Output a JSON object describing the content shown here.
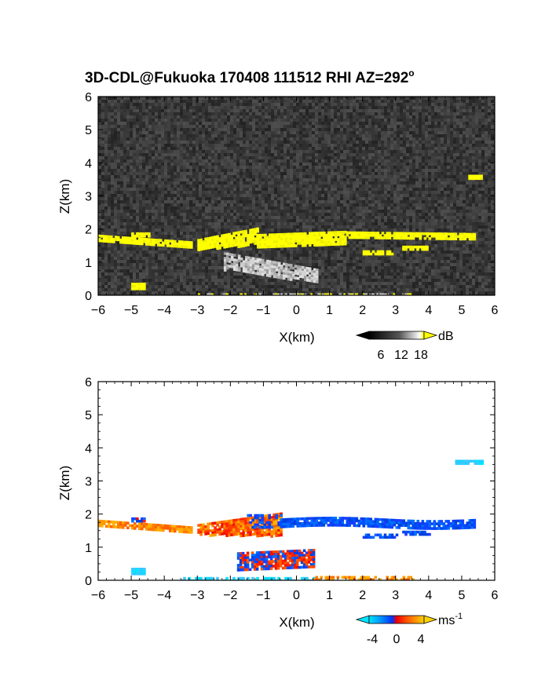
{
  "chart_data": [
    {
      "type": "heatmap",
      "title": "3D-CDL@Fukuoka 170408 111512 RHI AZ=292",
      "title_superscript": "o",
      "xlabel": "X(km)",
      "ylabel": "Z(km)",
      "xlim": [
        -6,
        6
      ],
      "ylim": [
        0,
        6
      ],
      "xticks": [
        "-6",
        "-5",
        "-4",
        "-3",
        "-2",
        "-1",
        "0",
        "1",
        "2",
        "3",
        "4",
        "5",
        "6"
      ],
      "yticks": [
        "0",
        "1",
        "2",
        "3",
        "4",
        "5",
        "6"
      ],
      "quantity": "backscatter",
      "colorbar": {
        "unit": "dB",
        "ticks": [
          "6",
          "12",
          "18"
        ],
        "range": [
          0,
          20
        ],
        "colormap": "gray-to-yellow"
      },
      "background": "noise (dark gray)",
      "features": [
        {
          "name": "cloud-layer",
          "x": [
            -6.0,
            5.5
          ],
          "z": [
            1.4,
            2.1
          ],
          "value": ">18 dB (yellow)"
        },
        {
          "name": "elevated-echo",
          "x": [
            5.2,
            5.6
          ],
          "z": [
            3.5,
            3.65
          ],
          "value": ">18 dB (yellow)"
        },
        {
          "name": "lower-plume",
          "x": [
            -2.2,
            0.6
          ],
          "z": [
            0.3,
            1.3
          ],
          "value": "8-16 dB (gray)"
        },
        {
          "name": "near-ground-echo",
          "x": [
            -5.0,
            -4.6
          ],
          "z": [
            0.2,
            0.4
          ],
          "value": ">18 dB (yellow)"
        }
      ]
    },
    {
      "type": "heatmap",
      "title": "",
      "xlabel": "X(km)",
      "ylabel": "Z(km)",
      "xlim": [
        -6,
        6
      ],
      "ylim": [
        0,
        6
      ],
      "xticks": [
        "-6",
        "-5",
        "-4",
        "-3",
        "-2",
        "-1",
        "0",
        "1",
        "2",
        "3",
        "4",
        "5",
        "6"
      ],
      "yticks": [
        "0",
        "1",
        "2",
        "3",
        "4",
        "5",
        "6"
      ],
      "quantity": "radial velocity",
      "colorbar": {
        "unit": "ms",
        "unit_superscript": "-1",
        "ticks": [
          "-4",
          "0",
          "4"
        ],
        "range": [
          -5,
          5
        ],
        "colormap": "cyan-blue-red-yellow"
      },
      "background": "white (no data)",
      "features": [
        {
          "name": "left-layer",
          "x": [
            -6.0,
            -3.2
          ],
          "z": [
            1.4,
            1.9
          ],
          "value": "+1 to +4 m/s (orange)"
        },
        {
          "name": "central-updraft",
          "x": [
            -3.0,
            -0.5
          ],
          "z": [
            1.1,
            2.0
          ],
          "value": "0 to +2 m/s (red)"
        },
        {
          "name": "right-layer",
          "x": [
            -0.5,
            5.5
          ],
          "z": [
            1.4,
            2.1
          ],
          "value": "-1 to -3 m/s (blue)"
        },
        {
          "name": "lower-core",
          "x": [
            -1.8,
            0.5
          ],
          "z": [
            0.3,
            0.9
          ],
          "value": "-2 to +1 m/s (blue/red)"
        },
        {
          "name": "elevated-echo",
          "x": [
            4.8,
            5.6
          ],
          "z": [
            3.5,
            3.65
          ],
          "value": "-4 m/s (cyan)"
        },
        {
          "name": "surface-band",
          "x": [
            -3.5,
            3.5
          ],
          "z": [
            0.0,
            0.2
          ],
          "value": "-4 to +3 m/s (cyan/orange)"
        }
      ]
    }
  ]
}
